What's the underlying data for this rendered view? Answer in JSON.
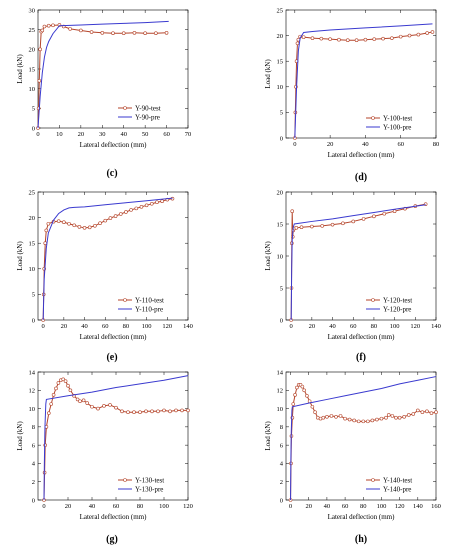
{
  "chart_data": [
    {
      "type": "line",
      "panel_label": "(c)",
      "xlabel": "Lateral deflection (mm)",
      "ylabel": "Load (kN)",
      "xlim": [
        0,
        70
      ],
      "ylim": [
        0,
        30
      ],
      "xticks": [
        0,
        10,
        20,
        30,
        40,
        50,
        60,
        70
      ],
      "yticks": [
        0,
        5,
        10,
        15,
        20,
        25,
        30
      ],
      "legend": "bottom-right",
      "series": [
        {
          "name": "Y-90-test",
          "color": "#b5452b",
          "markers": true,
          "x": [
            0,
            0.3,
            0.6,
            1.0,
            1.5,
            2,
            3,
            5,
            7,
            10,
            12,
            15,
            20,
            25,
            30,
            35,
            40,
            45,
            50,
            55,
            60
          ],
          "y": [
            0,
            5,
            12,
            20,
            24.5,
            24.8,
            25.8,
            26,
            26.1,
            26.2,
            25.8,
            25.2,
            24.8,
            24.4,
            24.2,
            24.1,
            24.1,
            24.2,
            24.1,
            24.1,
            24.2
          ]
        },
        {
          "name": "Y-90-pre",
          "color": "#3a3acf",
          "markers": false,
          "x": [
            0,
            1,
            2,
            3,
            4,
            5,
            7,
            10,
            20,
            30,
            40,
            50,
            61
          ],
          "y": [
            0,
            8,
            14,
            18,
            20.5,
            22,
            24,
            26,
            26.2,
            26.4,
            26.6,
            26.8,
            27.1
          ]
        }
      ]
    },
    {
      "type": "line",
      "panel_label": "(d)",
      "xlabel": "Lateral deflection (mm)",
      "ylabel": "Load (kN)",
      "xlim": [
        -5,
        80
      ],
      "ylim": [
        0,
        25
      ],
      "xticks": [
        0,
        20,
        40,
        60,
        80
      ],
      "yticks": [
        0,
        5,
        10,
        15,
        20,
        25
      ],
      "legend": "bottom-right",
      "series": [
        {
          "name": "Y-100-test",
          "color": "#b5452b",
          "markers": true,
          "x": [
            0,
            0.3,
            0.6,
            1.0,
            1.5,
            2,
            3,
            5,
            10,
            15,
            20,
            25,
            30,
            35,
            40,
            45,
            50,
            55,
            60,
            65,
            70,
            75,
            78
          ],
          "y": [
            0,
            5,
            10,
            15,
            18.5,
            19.2,
            19.8,
            19.7,
            19.5,
            19.4,
            19.3,
            19.2,
            19.1,
            19.1,
            19.2,
            19.3,
            19.4,
            19.5,
            19.8,
            20.0,
            20.2,
            20.5,
            20.7
          ]
        },
        {
          "name": "Y-100-pre",
          "color": "#3a3acf",
          "markers": false,
          "x": [
            0,
            1,
            2,
            3,
            5,
            10,
            20,
            40,
            60,
            78
          ],
          "y": [
            0,
            10,
            17,
            19.5,
            20.6,
            20.8,
            21.1,
            21.5,
            21.9,
            22.3
          ]
        }
      ]
    },
    {
      "type": "line",
      "panel_label": "(e)",
      "xlabel": "Lateral deflection (mm)",
      "ylabel": "Load (kN)",
      "xlim": [
        -5,
        140
      ],
      "ylim": [
        0,
        25
      ],
      "xticks": [
        0,
        20,
        40,
        60,
        80,
        100,
        120,
        140
      ],
      "yticks": [
        0,
        5,
        10,
        15,
        20,
        25
      ],
      "legend": "bottom-right",
      "series": [
        {
          "name": "Y-110-test",
          "color": "#b5452b",
          "markers": true,
          "x": [
            0,
            0.5,
            1,
            2,
            3,
            5,
            10,
            15,
            20,
            25,
            30,
            35,
            40,
            45,
            50,
            55,
            60,
            65,
            70,
            75,
            80,
            85,
            90,
            95,
            100,
            105,
            110,
            115,
            120,
            125
          ],
          "y": [
            0,
            5,
            10,
            15,
            17.5,
            18.8,
            19.2,
            19.3,
            19.1,
            18.8,
            18.5,
            18.2,
            18.0,
            18.1,
            18.4,
            18.9,
            19.4,
            19.9,
            20.3,
            20.7,
            21.1,
            21.5,
            21.8,
            22.1,
            22.4,
            22.7,
            23.0,
            23.2,
            23.5,
            23.7
          ]
        },
        {
          "name": "Y-110-pre",
          "color": "#3a3acf",
          "markers": false,
          "x": [
            0,
            1,
            3,
            5,
            10,
            15,
            20,
            25,
            30,
            40,
            60,
            80,
            100,
            125
          ],
          "y": [
            0,
            8,
            14,
            17,
            19.5,
            20.8,
            21.5,
            21.9,
            22.0,
            22.1,
            22.5,
            22.9,
            23.3,
            23.8
          ]
        }
      ]
    },
    {
      "type": "line",
      "panel_label": "(f)",
      "xlabel": "Lateral deflection (mm)",
      "ylabel": "Load (kN)",
      "xlim": [
        -5,
        140
      ],
      "ylim": [
        0,
        20
      ],
      "xticks": [
        0,
        20,
        40,
        60,
        80,
        100,
        120,
        140
      ],
      "yticks": [
        0,
        5,
        10,
        15,
        20
      ],
      "legend": "bottom-right",
      "series": [
        {
          "name": "Y-120-test",
          "color": "#b5452b",
          "markers": true,
          "x": [
            0,
            0.3,
            0.6,
            1,
            1.5,
            2,
            3,
            5,
            10,
            20,
            30,
            40,
            50,
            60,
            70,
            80,
            90,
            100,
            110,
            120,
            130
          ],
          "y": [
            0,
            5,
            12,
            17,
            13,
            14,
            14.3,
            14.4,
            14.5,
            14.6,
            14.7,
            14.9,
            15.1,
            15.4,
            15.8,
            16.2,
            16.6,
            17.0,
            17.4,
            17.8,
            18.1
          ]
        },
        {
          "name": "Y-120-pre",
          "color": "#3a3acf",
          "markers": false,
          "x": [
            0,
            0.5,
            1,
            2,
            3,
            20,
            40,
            60,
            80,
            100,
            130
          ],
          "y": [
            0,
            8,
            12.5,
            14.5,
            15.0,
            15.4,
            15.8,
            16.3,
            16.8,
            17.3,
            18.0
          ]
        }
      ]
    },
    {
      "type": "line",
      "panel_label": "(g)",
      "xlabel": "Lateral deflection (mm)",
      "ylabel": "Load (kN)",
      "xlim": [
        -5,
        120
      ],
      "ylim": [
        0,
        14
      ],
      "xticks": [
        0,
        20,
        40,
        60,
        80,
        100,
        120
      ],
      "yticks": [
        0,
        2,
        4,
        6,
        8,
        10,
        12,
        14
      ],
      "legend": "bottom-right",
      "series": [
        {
          "name": "Y-130-test",
          "color": "#b5452b",
          "markers": true,
          "x": [
            0,
            0.5,
            1,
            2,
            4,
            6,
            8,
            10,
            12,
            14,
            16,
            18,
            20,
            22,
            25,
            28,
            30,
            33,
            36,
            40,
            45,
            50,
            55,
            60,
            65,
            70,
            75,
            80,
            85,
            90,
            95,
            100,
            105,
            110,
            115,
            120
          ],
          "y": [
            0,
            3,
            6,
            8,
            9.5,
            10.5,
            11.5,
            12.2,
            12.8,
            13.1,
            13.2,
            13.0,
            12.5,
            12.0,
            11.4,
            11.0,
            10.8,
            10.9,
            10.6,
            10.2,
            10.0,
            10.3,
            10.4,
            10.1,
            9.7,
            9.6,
            9.6,
            9.6,
            9.7,
            9.7,
            9.7,
            9.8,
            9.7,
            9.8,
            9.8,
            9.8
          ]
        },
        {
          "name": "Y-130-pre",
          "color": "#3a3acf",
          "markers": false,
          "x": [
            0,
            0.3,
            0.8,
            1.5,
            2,
            20,
            40,
            60,
            80,
            100,
            120
          ],
          "y": [
            0,
            4,
            8,
            10.5,
            11,
            11.4,
            11.8,
            12.3,
            12.7,
            13.1,
            13.6
          ]
        }
      ]
    },
    {
      "type": "line",
      "panel_label": "(h)",
      "xlabel": "Lateral deflection (mm)",
      "ylabel": "Load (kN)",
      "xlim": [
        -5,
        160
      ],
      "ylim": [
        0,
        14
      ],
      "xticks": [
        0,
        20,
        40,
        60,
        80,
        100,
        120,
        140,
        160
      ],
      "yticks": [
        0,
        2,
        4,
        6,
        8,
        10,
        12,
        14
      ],
      "legend": "bottom-right",
      "series": [
        {
          "name": "Y-140-test",
          "color": "#b5452b",
          "markers": true,
          "x": [
            0,
            0.5,
            1,
            2,
            3,
            5,
            7,
            9,
            11,
            13,
            15,
            18,
            21,
            24,
            27,
            30,
            33,
            36,
            40,
            45,
            50,
            55,
            60,
            65,
            70,
            75,
            80,
            85,
            90,
            95,
            100,
            105,
            108,
            112,
            116,
            120,
            125,
            130,
            135,
            140,
            145,
            150,
            155,
            160
          ],
          "y": [
            0,
            4,
            7,
            9,
            10.5,
            11.5,
            12.3,
            12.6,
            12.6,
            12.4,
            12.0,
            11.4,
            10.8,
            10.2,
            9.6,
            9.0,
            8.9,
            9.0,
            9.1,
            9.2,
            9.1,
            9.2,
            8.9,
            8.8,
            8.7,
            8.6,
            8.6,
            8.6,
            8.7,
            8.8,
            8.9,
            9.0,
            9.3,
            9.2,
            9.0,
            9.0,
            9.1,
            9.3,
            9.4,
            9.8,
            9.6,
            9.7,
            9.5,
            9.6
          ]
        },
        {
          "name": "Y-140-pre",
          "color": "#3a3acf",
          "markers": false,
          "x": [
            0,
            0.3,
            0.8,
            1.5,
            2,
            20,
            40,
            60,
            80,
            100,
            120,
            140,
            160
          ],
          "y": [
            0,
            4,
            7.5,
            9.8,
            10.2,
            10.6,
            11.0,
            11.4,
            11.8,
            12.2,
            12.7,
            13.1,
            13.5
          ]
        }
      ]
    }
  ]
}
